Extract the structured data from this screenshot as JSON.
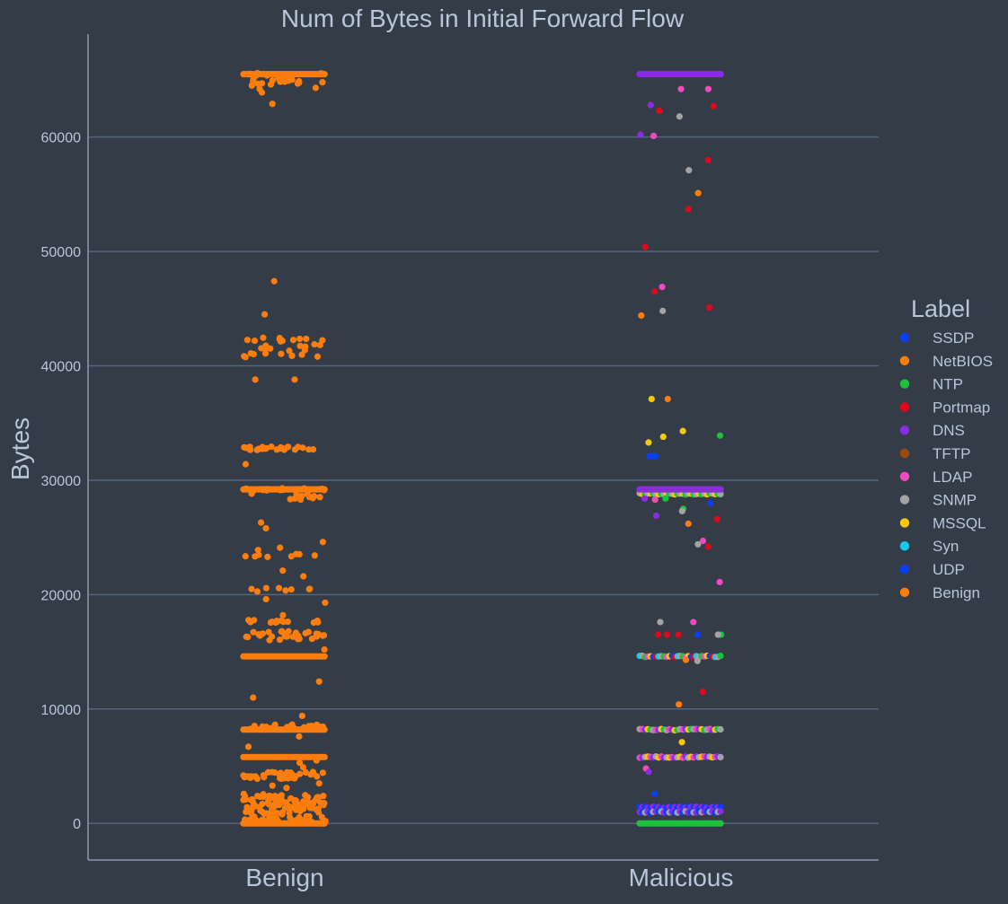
{
  "chart_data": {
    "type": "scatter",
    "subtype": "strip",
    "title": "Num of Bytes in Initial Forward Flow",
    "xlabel": "",
    "ylabel": "Bytes",
    "categories": [
      "Benign",
      "Malicious"
    ],
    "ylim": [
      -3200,
      69000
    ],
    "yticks": [
      0,
      10000,
      20000,
      30000,
      40000,
      50000,
      60000
    ],
    "grid": "horizontal",
    "legend": {
      "title": "Label",
      "position": "right",
      "entries": [
        {
          "name": "SSDP",
          "color": "#0a3ef5"
        },
        {
          "name": "NetBIOS",
          "color": "#fb7d0e"
        },
        {
          "name": "NTP",
          "color": "#1cc23c"
        },
        {
          "name": "Portmap",
          "color": "#e0081a"
        },
        {
          "name": "DNS",
          "color": "#8b2be2"
        },
        {
          "name": "TFTP",
          "color": "#9a4a0f"
        },
        {
          "name": "LDAP",
          "color": "#f04ac0"
        },
        {
          "name": "SNMP",
          "color": "#a3a3a3"
        },
        {
          "name": "MSSQL",
          "color": "#f8c80a"
        },
        {
          "name": "Syn",
          "color": "#10ccee"
        },
        {
          "name": "UDP",
          "color": "#0a3ef5"
        },
        {
          "name": "Benign",
          "color": "#fb7d0e"
        }
      ]
    },
    "series": [
      {
        "name": "Benign",
        "category": "Benign",
        "bands": [
          65500,
          29200,
          14600,
          8200,
          5800,
          0
        ],
        "clusters": [
          {
            "y": 65100,
            "spread": 500,
            "n": 22
          },
          {
            "y": 42300,
            "spread": 200,
            "n": 12
          },
          {
            "y": 41600,
            "spread": 300,
            "n": 10
          },
          {
            "y": 40900,
            "spread": 200,
            "n": 10
          },
          {
            "y": 32800,
            "spread": 150,
            "n": 26
          },
          {
            "y": 16400,
            "spread": 400,
            "n": 30
          },
          {
            "y": 17700,
            "spread": 150,
            "n": 14
          },
          {
            "y": 8400,
            "spread": 250,
            "n": 22
          },
          {
            "y": 4200,
            "spread": 300,
            "n": 40
          },
          {
            "y": 2100,
            "spread": 500,
            "n": 45
          },
          {
            "y": 900,
            "spread": 900,
            "n": 90
          },
          {
            "y": 20400,
            "spread": 200,
            "n": 8
          },
          {
            "y": 23400,
            "spread": 150,
            "n": 8
          },
          {
            "y": 28600,
            "spread": 400,
            "n": 12
          },
          {
            "y": 29200,
            "spread": 100,
            "n": 18
          }
        ],
        "points": [
          47400,
          44500,
          38800,
          38800,
          31400,
          26300,
          25800,
          24600,
          24100,
          23900,
          22100,
          21600,
          19600,
          19300,
          18200,
          15200,
          12400,
          11000,
          9400,
          7600,
          6700,
          5500,
          5300,
          4900,
          3500,
          3300,
          3100,
          64700,
          64500,
          64300,
          63900,
          62900,
          64200,
          64600,
          64900
        ]
      },
      {
        "name": "Malicious",
        "category": "Malicious",
        "bands": [
          {
            "y": 65500,
            "color": "#8b2be2"
          },
          {
            "y": 29200,
            "color": "#8b2be2"
          },
          {
            "y": 0,
            "color": "#1cc23c"
          }
        ],
        "mixed_bands": [
          {
            "y": 14600,
            "colors": [
              "#10ccee",
              "#a3a3a3",
              "#1cc23c",
              "#f04ac0",
              "#f8c80a",
              "#0a3ef5",
              "#e0081a"
            ]
          },
          {
            "y": 8200,
            "colors": [
              "#a3a3a3",
              "#f04ac0",
              "#8b2be2",
              "#f8c80a",
              "#1cc23c"
            ]
          },
          {
            "y": 5800,
            "colors": [
              "#f04ac0",
              "#8b2be2",
              "#a3a3a3",
              "#f8c80a"
            ]
          },
          {
            "y": 1400,
            "colors": [
              "#0a3ef5",
              "#8b2be2"
            ]
          },
          {
            "y": 1000,
            "colors": [
              "#8b2be2",
              "#0a3ef5",
              "#a3a3a3"
            ]
          },
          {
            "y": 28800,
            "colors": [
              "#a3a3a3",
              "#f8c80a",
              "#1cc23c"
            ]
          }
        ],
        "points": [
          {
            "y": 64200,
            "label": "LDAP"
          },
          {
            "y": 64200,
            "label": "LDAP"
          },
          {
            "y": 62800,
            "label": "DNS"
          },
          {
            "y": 62700,
            "label": "Portmap"
          },
          {
            "y": 62300,
            "label": "Portmap"
          },
          {
            "y": 61800,
            "label": "SNMP"
          },
          {
            "y": 60200,
            "label": "DNS"
          },
          {
            "y": 60100,
            "label": "LDAP"
          },
          {
            "y": 58000,
            "label": "Portmap"
          },
          {
            "y": 57100,
            "label": "SNMP"
          },
          {
            "y": 55100,
            "label": "NetBIOS"
          },
          {
            "y": 53700,
            "label": "Portmap"
          },
          {
            "y": 50400,
            "label": "Portmap"
          },
          {
            "y": 46900,
            "label": "LDAP"
          },
          {
            "y": 46500,
            "label": "Portmap"
          },
          {
            "y": 45100,
            "label": "Portmap"
          },
          {
            "y": 44800,
            "label": "SNMP"
          },
          {
            "y": 44400,
            "label": "NetBIOS"
          },
          {
            "y": 37100,
            "label": "NetBIOS"
          },
          {
            "y": 37100,
            "label": "MSSQL"
          },
          {
            "y": 34300,
            "label": "MSSQL"
          },
          {
            "y": 33900,
            "label": "NTP"
          },
          {
            "y": 33800,
            "label": "MSSQL"
          },
          {
            "y": 33300,
            "label": "MSSQL"
          },
          {
            "y": 32100,
            "label": "SSDP"
          },
          {
            "y": 32100,
            "label": "SSDP"
          },
          {
            "y": 32100,
            "label": "SSDP"
          },
          {
            "y": 28400,
            "label": "NTP"
          },
          {
            "y": 28400,
            "label": "DNS"
          },
          {
            "y": 28300,
            "label": "LDAP"
          },
          {
            "y": 28000,
            "label": "SSDP"
          },
          {
            "y": 27500,
            "label": "NTP"
          },
          {
            "y": 27300,
            "label": "SNMP"
          },
          {
            "y": 26900,
            "label": "DNS"
          },
          {
            "y": 26600,
            "label": "Portmap"
          },
          {
            "y": 26200,
            "label": "NetBIOS"
          },
          {
            "y": 24700,
            "label": "LDAP"
          },
          {
            "y": 24400,
            "label": "SNMP"
          },
          {
            "y": 24200,
            "label": "Portmap"
          },
          {
            "y": 21100,
            "label": "LDAP"
          },
          {
            "y": 17600,
            "label": "SNMP"
          },
          {
            "y": 17600,
            "label": "LDAP"
          },
          {
            "y": 16500,
            "label": "Portmap"
          },
          {
            "y": 16500,
            "label": "NTP"
          },
          {
            "y": 16500,
            "label": "Portmap"
          },
          {
            "y": 16500,
            "label": "SNMP"
          },
          {
            "y": 16500,
            "label": "Portmap"
          },
          {
            "y": 16500,
            "label": "SSDP"
          },
          {
            "y": 14300,
            "label": "NetBIOS"
          },
          {
            "y": 14200,
            "label": "SNMP"
          },
          {
            "y": 11500,
            "label": "Portmap"
          },
          {
            "y": 10400,
            "label": "NetBIOS"
          },
          {
            "y": 7100,
            "label": "MSSQL"
          },
          {
            "y": 4800,
            "label": "LDAP"
          },
          {
            "y": 4500,
            "label": "DNS"
          },
          {
            "y": 2600,
            "label": "SSDP"
          }
        ]
      }
    ]
  }
}
